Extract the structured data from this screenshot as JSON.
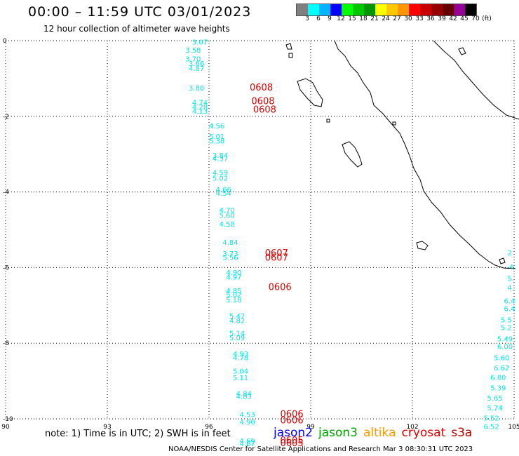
{
  "header": {
    "title": "00:00 – 11:59 UTC 03/01/2023",
    "subtitle": "12 hour collection of altimeter wave heights"
  },
  "colorbar": {
    "colors": [
      "#808080",
      "#00ffff",
      "#00b4ff",
      "#0000ff",
      "#00ff00",
      "#00c800",
      "#009600",
      "#ffff00",
      "#ffc800",
      "#ff9600",
      "#ff0000",
      "#c80000",
      "#960000",
      "#640000",
      "#960096",
      "#000000"
    ],
    "labels": [
      "3",
      "6",
      "9",
      "12",
      "15",
      "18",
      "21",
      "24",
      "27",
      "30",
      "33",
      "36",
      "39",
      "42",
      "45",
      "70",
      "(ft)"
    ]
  },
  "axes": {
    "x_ticks": [
      "90",
      "93",
      "96",
      "99",
      "102",
      "105"
    ],
    "y_ticks": [
      "0",
      "-2",
      "-4",
      "-6",
      "-8",
      "-10"
    ]
  },
  "observations": {
    "color": "#00e5e5",
    "track1": [
      {
        "lon": 95.5,
        "lat": -0.1,
        "v": "3.07"
      },
      {
        "lon": 95.3,
        "lat": -0.32,
        "v": "3.58"
      },
      {
        "lon": 95.3,
        "lat": -0.55,
        "v": "3.70"
      },
      {
        "lon": 95.4,
        "lat": -0.67,
        "v": "3.66"
      },
      {
        "lon": 95.4,
        "lat": -0.8,
        "v": "4.87"
      },
      {
        "lon": 95.4,
        "lat": -1.32,
        "v": "3.80"
      },
      {
        "lon": 95.5,
        "lat": -1.7,
        "v": "4.74"
      },
      {
        "lon": 95.5,
        "lat": -1.82,
        "v": "4.28"
      },
      {
        "lon": 95.5,
        "lat": -1.93,
        "v": "4.13"
      },
      {
        "lon": 96.0,
        "lat": -2.32,
        "v": "4.56"
      },
      {
        "lon": 96.0,
        "lat": -2.6,
        "v": "5.01"
      },
      {
        "lon": 96.0,
        "lat": -2.72,
        "v": "5.38"
      },
      {
        "lon": 96.1,
        "lat": -3.1,
        "v": "3.84"
      },
      {
        "lon": 96.1,
        "lat": -3.18,
        "v": "4.37"
      },
      {
        "lon": 96.1,
        "lat": -3.55,
        "v": "4.59"
      },
      {
        "lon": 96.1,
        "lat": -3.7,
        "v": "5.02"
      },
      {
        "lon": 96.2,
        "lat": -4.0,
        "v": "4.66"
      },
      {
        "lon": 96.2,
        "lat": -4.1,
        "v": "4.54"
      },
      {
        "lon": 96.3,
        "lat": -4.55,
        "v": "4.70"
      },
      {
        "lon": 96.3,
        "lat": -4.68,
        "v": "5.60"
      },
      {
        "lon": 96.3,
        "lat": -4.92,
        "v": "4.58"
      },
      {
        "lon": 96.4,
        "lat": -5.4,
        "v": "4.84"
      },
      {
        "lon": 96.4,
        "lat": -5.7,
        "v": "3.73"
      },
      {
        "lon": 96.4,
        "lat": -5.8,
        "v": "5.56"
      },
      {
        "lon": 96.5,
        "lat": -6.2,
        "v": "4.90"
      },
      {
        "lon": 96.5,
        "lat": -6.32,
        "v": "4.97"
      },
      {
        "lon": 96.5,
        "lat": -6.68,
        "v": "4.85"
      },
      {
        "lon": 96.5,
        "lat": -6.78,
        "v": "5.02"
      },
      {
        "lon": 96.5,
        "lat": -6.92,
        "v": "5.18"
      },
      {
        "lon": 96.6,
        "lat": -7.35,
        "v": "5.47"
      },
      {
        "lon": 96.6,
        "lat": -7.47,
        "v": "4.82"
      },
      {
        "lon": 96.6,
        "lat": -7.8,
        "v": "5.14"
      },
      {
        "lon": 96.6,
        "lat": -7.92,
        "v": "5.09"
      },
      {
        "lon": 96.7,
        "lat": -8.35,
        "v": "4.93"
      },
      {
        "lon": 96.7,
        "lat": -8.45,
        "v": "4.78"
      },
      {
        "lon": 96.7,
        "lat": -8.8,
        "v": "5.04"
      },
      {
        "lon": 96.7,
        "lat": -8.98,
        "v": "5.11"
      },
      {
        "lon": 96.8,
        "lat": -9.4,
        "v": "4.84"
      },
      {
        "lon": 96.8,
        "lat": -9.47,
        "v": "4.83"
      },
      {
        "lon": 96.9,
        "lat": -9.95,
        "v": "4.53"
      },
      {
        "lon": 96.9,
        "lat": -10.15,
        "v": "4.90"
      },
      {
        "lon": 96.9,
        "lat": -10.65,
        "v": "4.69"
      },
      {
        "lon": 96.9,
        "lat": -10.72,
        "v": "4.67"
      }
    ],
    "track2": [
      {
        "lon": 104.8,
        "lat": -5.68,
        "v": "2"
      },
      {
        "lon": 104.85,
        "lat": -6.05,
        "v": "4"
      },
      {
        "lon": 104.8,
        "lat": -6.35,
        "v": "5."
      },
      {
        "lon": 104.8,
        "lat": -6.6,
        "v": "4."
      },
      {
        "lon": 104.7,
        "lat": -6.95,
        "v": "6.4"
      },
      {
        "lon": 104.7,
        "lat": -7.15,
        "v": "6.4"
      },
      {
        "lon": 104.6,
        "lat": -7.45,
        "v": "5.5"
      },
      {
        "lon": 104.6,
        "lat": -7.65,
        "v": "5.2"
      },
      {
        "lon": 104.5,
        "lat": -7.95,
        "v": "5.49"
      },
      {
        "lon": 104.5,
        "lat": -8.15,
        "v": "6.00"
      },
      {
        "lon": 104.4,
        "lat": -8.45,
        "v": "5.60"
      },
      {
        "lon": 104.4,
        "lat": -8.72,
        "v": "6.62"
      },
      {
        "lon": 104.3,
        "lat": -8.97,
        "v": "6.80"
      },
      {
        "lon": 104.3,
        "lat": -9.25,
        "v": "5.39"
      },
      {
        "lon": 104.2,
        "lat": -9.52,
        "v": "5.65"
      },
      {
        "lon": 104.2,
        "lat": -9.78,
        "v": "5.74"
      },
      {
        "lon": 104.1,
        "lat": -10.05,
        "v": "5.52"
      },
      {
        "lon": 104.1,
        "lat": -10.27,
        "v": "6.52"
      }
    ]
  },
  "pass_labels": [
    {
      "lon": 97.2,
      "lat": -1.32,
      "t": "0608"
    },
    {
      "lon": 97.25,
      "lat": -1.68,
      "t": "0608"
    },
    {
      "lon": 97.3,
      "lat": -1.9,
      "t": "0608"
    },
    {
      "lon": 97.65,
      "lat": -5.7,
      "t": "0607"
    },
    {
      "lon": 97.65,
      "lat": -5.82,
      "t": "0607"
    },
    {
      "lon": 97.75,
      "lat": -6.6,
      "t": "0606"
    },
    {
      "lon": 98.1,
      "lat": -9.95,
      "t": "0606"
    },
    {
      "lon": 98.1,
      "lat": -10.12,
      "t": "0606"
    },
    {
      "lon": 98.1,
      "lat": -10.65,
      "t": "0605"
    },
    {
      "lon": 98.1,
      "lat": -10.72,
      "t": "0605"
    }
  ],
  "footer": {
    "note": "note: 1) Time is in UTC; 2) SWH is in feet",
    "credit": "NOAA/NESDIS Center for Satellite Applications and Research    Mar  3 08:30:31 UTC 2023"
  },
  "legend": [
    {
      "name": "jason2",
      "color": "#0000ff"
    },
    {
      "name": "jason3",
      "color": "#00a000"
    },
    {
      "name": "altika",
      "color": "#ff9900"
    },
    {
      "name": "cryosat",
      "color": "#e00000"
    },
    {
      "name": "s3a",
      "color": "#c00000"
    }
  ]
}
